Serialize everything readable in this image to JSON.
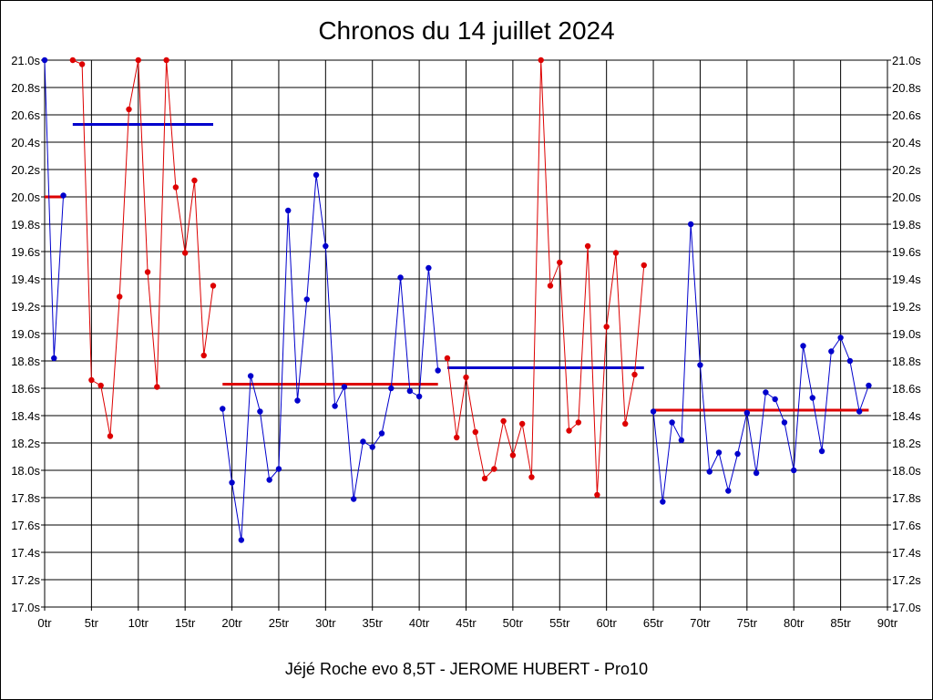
{
  "title": "Chronos du 14 juillet 2024",
  "footer": "Jéjé Roche evo 8,5T - JEROME HUBERT - Pro10",
  "chart_data": {
    "type": "line",
    "title": "Chronos du 14 juillet 2024",
    "xlabel": "",
    "ylabel": "",
    "xlim": [
      0,
      90
    ],
    "ylim": [
      17.0,
      21.0
    ],
    "grid": true,
    "x_ticks": [
      "0tr",
      "5tr",
      "10tr",
      "15tr",
      "20tr",
      "25tr",
      "30tr",
      "35tr",
      "40tr",
      "45tr",
      "50tr",
      "55tr",
      "60tr",
      "65tr",
      "70tr",
      "75tr",
      "80tr",
      "85tr",
      "90tr"
    ],
    "y_ticks": [
      "17.0s",
      "17.2s",
      "17.4s",
      "17.6s",
      "17.8s",
      "18.0s",
      "18.2s",
      "18.4s",
      "18.6s",
      "18.8s",
      "19.0s",
      "19.2s",
      "19.4s",
      "19.6s",
      "19.8s",
      "20.0s",
      "20.2s",
      "20.4s",
      "20.6s",
      "20.8s",
      "21.0s"
    ],
    "colors": {
      "blue": "#0000cc",
      "red": "#dd0000"
    },
    "series": [
      {
        "color": "blue",
        "points": [
          [
            0,
            21.0
          ],
          [
            1,
            18.82
          ],
          [
            2,
            20.01
          ]
        ]
      },
      {
        "color": "red",
        "points": [
          [
            3,
            21.0
          ],
          [
            4,
            20.97
          ],
          [
            5,
            18.66
          ],
          [
            6,
            18.62
          ],
          [
            7,
            18.25
          ],
          [
            8,
            19.27
          ],
          [
            9,
            20.64
          ],
          [
            10,
            21.0
          ],
          [
            11,
            19.45
          ],
          [
            12,
            18.61
          ],
          [
            13,
            21.0
          ],
          [
            14,
            20.07
          ],
          [
            15,
            19.59
          ],
          [
            16,
            20.12
          ],
          [
            17,
            18.84
          ],
          [
            18,
            19.35
          ]
        ]
      },
      {
        "color": "blue",
        "points": [
          [
            19,
            18.45
          ],
          [
            20,
            17.91
          ],
          [
            21,
            17.49
          ],
          [
            22,
            18.69
          ],
          [
            23,
            18.43
          ],
          [
            24,
            17.93
          ],
          [
            25,
            18.01
          ],
          [
            26,
            19.9
          ],
          [
            27,
            18.51
          ],
          [
            28,
            19.25
          ],
          [
            29,
            20.16
          ],
          [
            30,
            19.64
          ],
          [
            31,
            18.47
          ],
          [
            32,
            18.61
          ],
          [
            33,
            17.79
          ],
          [
            34,
            18.21
          ],
          [
            35,
            18.17
          ],
          [
            36,
            18.27
          ],
          [
            37,
            18.6
          ],
          [
            38,
            19.41
          ],
          [
            39,
            18.58
          ],
          [
            40,
            18.54
          ],
          [
            41,
            19.48
          ],
          [
            42,
            18.73
          ]
        ]
      },
      {
        "color": "red",
        "points": [
          [
            43,
            18.82
          ],
          [
            44,
            18.24
          ],
          [
            45,
            18.68
          ],
          [
            46,
            18.28
          ],
          [
            47,
            17.94
          ],
          [
            48,
            18.01
          ],
          [
            49,
            18.36
          ],
          [
            50,
            18.11
          ],
          [
            51,
            18.34
          ],
          [
            52,
            17.95
          ],
          [
            53,
            21.0
          ],
          [
            54,
            19.35
          ],
          [
            55,
            19.52
          ],
          [
            56,
            18.29
          ],
          [
            57,
            18.35
          ],
          [
            58,
            19.64
          ],
          [
            59,
            17.82
          ],
          [
            60,
            19.05
          ],
          [
            61,
            19.59
          ],
          [
            62,
            18.34
          ],
          [
            63,
            18.7
          ],
          [
            64,
            19.5
          ]
        ]
      },
      {
        "color": "blue",
        "points": [
          [
            65,
            18.43
          ],
          [
            66,
            17.77
          ],
          [
            67,
            18.35
          ],
          [
            68,
            18.22
          ],
          [
            69,
            19.8
          ],
          [
            70,
            18.77
          ],
          [
            71,
            17.99
          ],
          [
            72,
            18.13
          ],
          [
            73,
            17.85
          ],
          [
            74,
            18.12
          ],
          [
            75,
            18.42
          ],
          [
            76,
            17.98
          ],
          [
            77,
            18.57
          ],
          [
            78,
            18.52
          ],
          [
            79,
            18.35
          ],
          [
            80,
            18.0
          ],
          [
            81,
            18.91
          ],
          [
            82,
            18.53
          ],
          [
            83,
            18.14
          ],
          [
            84,
            18.87
          ],
          [
            85,
            18.97
          ],
          [
            86,
            18.8
          ],
          [
            87,
            18.43
          ],
          [
            88,
            18.62
          ]
        ]
      }
    ],
    "averages": [
      {
        "color": "red",
        "x": [
          0,
          2
        ],
        "y": 20.0
      },
      {
        "color": "blue",
        "x": [
          3,
          18
        ],
        "y": 20.53
      },
      {
        "color": "red",
        "x": [
          19,
          42
        ],
        "y": 18.63
      },
      {
        "color": "blue",
        "x": [
          43,
          64
        ],
        "y": 18.75
      },
      {
        "color": "red",
        "x": [
          65,
          88
        ],
        "y": 18.44
      }
    ]
  }
}
